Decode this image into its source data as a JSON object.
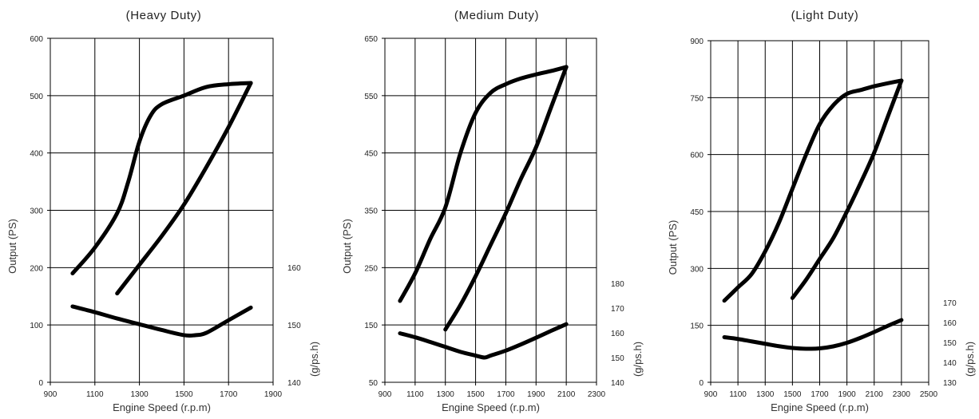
{
  "chart_data": [
    {
      "type": "line",
      "title": "(Heavy Duty)",
      "xlabel": "Engine Speed (r.p.m)",
      "ylabel": "Output (PS)",
      "y2label": "(g/ps.h)",
      "xlim": [
        900,
        1900
      ],
      "xticks": [
        900,
        1100,
        1300,
        1500,
        1700,
        1900
      ],
      "ylim": [
        0,
        600
      ],
      "yticks": [
        0,
        100,
        200,
        300,
        400,
        500,
        600
      ],
      "y2lim": [
        140,
        160
      ],
      "y2ticks": [
        140,
        150,
        160
      ],
      "grid": true,
      "series": [
        {
          "axis": "left",
          "x": [
            1000,
            1100,
            1200,
            1250,
            1300,
            1350,
            1400,
            1500,
            1600,
            1700,
            1800
          ],
          "y": [
            190,
            235,
            295,
            350,
            420,
            465,
            485,
            500,
            515,
            520,
            522
          ]
        },
        {
          "axis": "left",
          "x": [
            1200,
            1300,
            1400,
            1500,
            1600,
            1700,
            1800
          ],
          "y": [
            155,
            205,
            255,
            310,
            375,
            445,
            522
          ]
        },
        {
          "axis": "right",
          "x": [
            1000,
            1100,
            1200,
            1300,
            1400,
            1500,
            1550,
            1600,
            1700,
            1800
          ],
          "y": [
            153.2,
            152.2,
            151.1,
            150.1,
            149.1,
            148.2,
            148.2,
            148.6,
            150.8,
            153.0
          ]
        }
      ]
    },
    {
      "type": "line",
      "title": "(Medium Duty)",
      "xlabel": "Engine Speed (r.p.m)",
      "ylabel": "Output (PS)",
      "y2label": "(g/ps.h)",
      "xlim": [
        900,
        2300
      ],
      "xticks": [
        900,
        1100,
        1300,
        1500,
        1700,
        1900,
        2100,
        2300
      ],
      "ylim": [
        50,
        650
      ],
      "yticks": [
        50,
        150,
        250,
        350,
        450,
        550,
        650
      ],
      "y2lim": [
        140,
        180
      ],
      "y2ticks": [
        140,
        150,
        160,
        170,
        180
      ],
      "grid": true,
      "series": [
        {
          "axis": "left",
          "x": [
            1000,
            1100,
            1200,
            1300,
            1400,
            1500,
            1600,
            1700,
            1800,
            1900,
            2000,
            2100
          ],
          "y": [
            192,
            240,
            300,
            355,
            450,
            520,
            555,
            570,
            580,
            587,
            593,
            600
          ]
        },
        {
          "axis": "left",
          "x": [
            1300,
            1400,
            1500,
            1600,
            1700,
            1800,
            1900,
            2000,
            2100
          ],
          "y": [
            142,
            185,
            235,
            290,
            345,
            405,
            460,
            530,
            600
          ]
        },
        {
          "axis": "right",
          "x": [
            1000,
            1100,
            1200,
            1300,
            1400,
            1500,
            1560,
            1600,
            1700,
            1800,
            1900,
            2000,
            2100
          ],
          "y": [
            159.8,
            158.2,
            156.3,
            154.3,
            152.3,
            150.8,
            150.0,
            150.8,
            152.8,
            155.3,
            158.0,
            160.8,
            163.5
          ]
        }
      ]
    },
    {
      "type": "line",
      "title": "(Light Duty)",
      "xlabel": "Engine Speed (r.p.m)",
      "ylabel": "Output (PS)",
      "y2label": "(g/ps.h)",
      "xlim": [
        900,
        2500
      ],
      "xticks": [
        900,
        1100,
        1300,
        1500,
        1700,
        1900,
        2100,
        2300,
        2500
      ],
      "ylim": [
        0,
        900
      ],
      "yticks": [
        0,
        150,
        300,
        450,
        600,
        750,
        900
      ],
      "y2lim": [
        130,
        170
      ],
      "y2ticks": [
        130,
        140,
        150,
        160,
        170
      ],
      "grid": true,
      "series": [
        {
          "axis": "left",
          "x": [
            1000,
            1100,
            1200,
            1300,
            1400,
            1500,
            1600,
            1700,
            1800,
            1900,
            2000,
            2100,
            2200,
            2300
          ],
          "y": [
            215,
            250,
            285,
            345,
            420,
            510,
            600,
            680,
            730,
            760,
            770,
            780,
            788,
            795
          ]
        },
        {
          "axis": "left",
          "x": [
            1500,
            1600,
            1700,
            1800,
            1900,
            2000,
            2100,
            2200,
            2300
          ],
          "y": [
            222,
            270,
            325,
            380,
            450,
            525,
            605,
            700,
            795
          ]
        },
        {
          "axis": "right",
          "x": [
            1000,
            1100,
            1200,
            1300,
            1400,
            1500,
            1600,
            1700,
            1800,
            1900,
            2000,
            2100,
            2200,
            2300
          ],
          "y": [
            152.6,
            151.7,
            150.5,
            149.3,
            148.1,
            147.2,
            146.8,
            147.0,
            148.0,
            149.8,
            152.3,
            155.2,
            158.3,
            161.2
          ]
        }
      ]
    }
  ]
}
